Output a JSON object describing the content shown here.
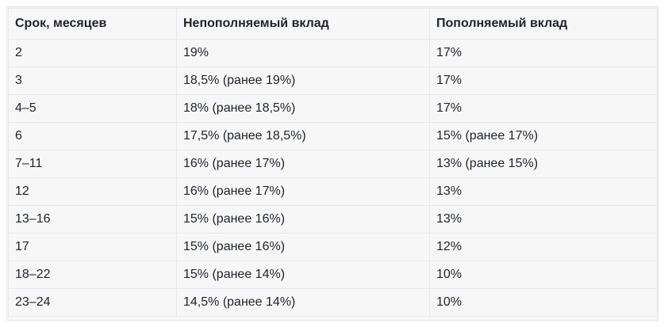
{
  "table": {
    "headers": [
      "Срок, месяцев",
      "Непополняемый вклад",
      "Пополняемый вклад"
    ],
    "rows": [
      [
        "2",
        "19%",
        "17%"
      ],
      [
        "3",
        "18,5% (ранее 19%)",
        "17%"
      ],
      [
        "4–5",
        "18% (ранее 18,5%)",
        "17%"
      ],
      [
        "6",
        "17,5% (ранее 18,5%)",
        "15% (ранее 17%)"
      ],
      [
        "7–11",
        "16% (ранее 17%)",
        "13% (ранее 15%)"
      ],
      [
        "12",
        "16% (ранее 17%)",
        "13%"
      ],
      [
        "13–16",
        "15% (ранее 16%)",
        "13%"
      ],
      [
        "17",
        "15% (ранее 16%)",
        "12%"
      ],
      [
        "18–22",
        "15% (ранее 14%)",
        "10%"
      ],
      [
        "23–24",
        "14,5% (ранее 14%)",
        "10%"
      ]
    ]
  },
  "colors": {
    "background": "#f7f7f8",
    "border": "#e8e8ea",
    "text": "#1f2328"
  }
}
